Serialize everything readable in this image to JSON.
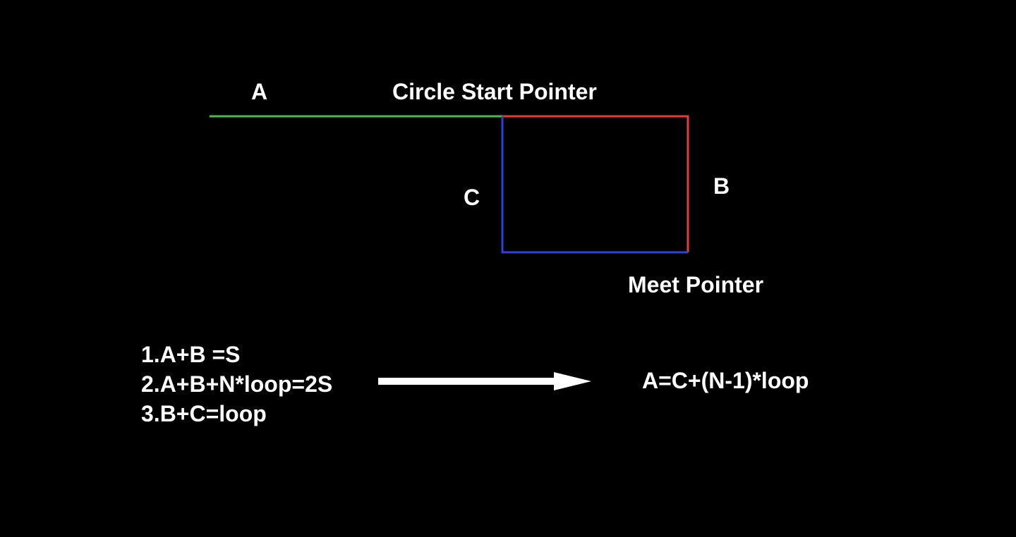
{
  "labels": {
    "a": "A",
    "circle_start": "Circle Start Pointer",
    "c": "C",
    "b": "B",
    "meet": "Meet Pointer"
  },
  "equations": [
    "1.A+B =S",
    "2.A+B+N*loop=2S",
    "3.B+C=loop"
  ],
  "result": "A=C+(N-1)*loop",
  "colors": {
    "background": "#000000",
    "text": "#ffffff",
    "segment_a": "#4cbb4c",
    "segment_b": "#e33b3b",
    "segment_c": "#2f3fe0",
    "arrow": "#ffffff"
  }
}
